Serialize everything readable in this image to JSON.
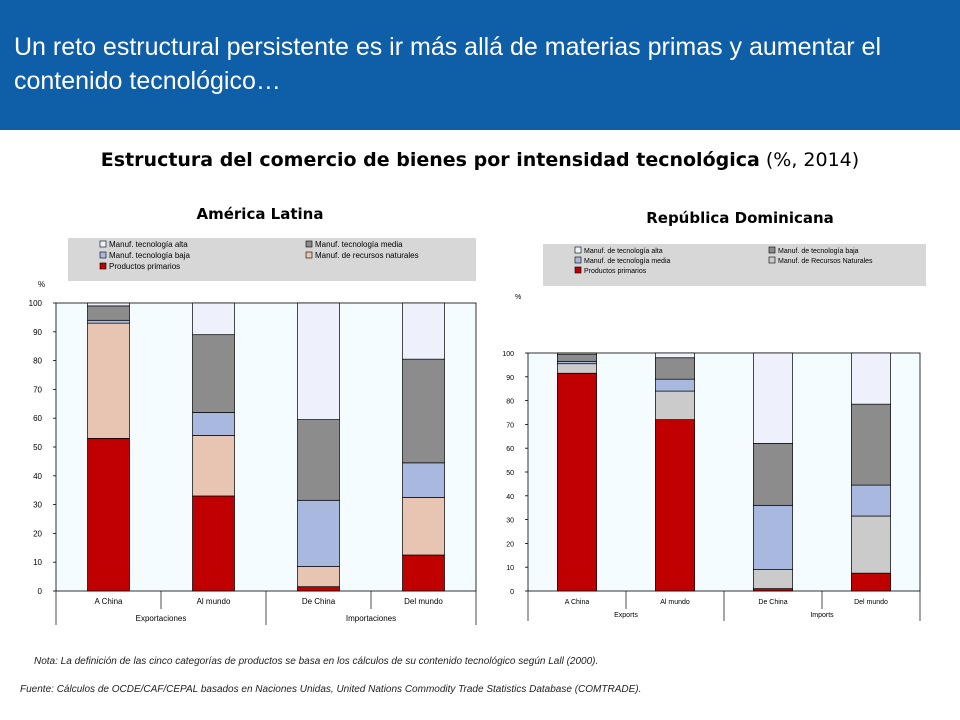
{
  "header": {
    "title": "Un reto estructural persistente es ir más allá de materias primas y aumentar el contenido tecnológico…"
  },
  "main_title": {
    "bold": "Estructura del comercio de bienes por intensidad tecnológica",
    "rest": " (%, 2014)"
  },
  "footnote": "Nota: La definición de las cinco categorías de productos se basa en los cálculos de su contenido tecnológico según Lall (2000).",
  "source": "Fuente: Cálculos de OCDE/CAF/CEPAL basados en Naciones Unidas, United Nations Commodity Trade Statistics Database (COMTRADE).",
  "colors": {
    "banner": "#0f5ea8",
    "primarios": "#c00000",
    "recursos_al": "#e8c5b3",
    "recursos_rd": "#cbcbcb",
    "baja_al": "#a9b8df",
    "media_al": "#8c8c8c",
    "alta": "#eef1fb",
    "plot_bg": "#f4fcff"
  },
  "chart_data": [
    {
      "type": "bar",
      "stacked": true,
      "title": "América Latina",
      "ylabel": "%",
      "ylim": [
        0,
        100
      ],
      "yticks": [
        0,
        10,
        20,
        30,
        40,
        50,
        60,
        70,
        80,
        90,
        100
      ],
      "categories": [
        "A China",
        "Al mundo",
        "De China",
        "Del mundo"
      ],
      "groups": [
        {
          "label": "Exportaciones",
          "categories": [
            "A China",
            "Al mundo"
          ]
        },
        {
          "label": "Importaciones",
          "categories": [
            "De China",
            "Del mundo"
          ]
        }
      ],
      "legend_position": "top",
      "legend_order": [
        "Manuf. tecnología alta",
        "Manuf. tecnología media",
        "Manuf. tecnología baja",
        "Manuf. de recursos naturales",
        "Productos primarios"
      ],
      "series": [
        {
          "name": "Productos primarios",
          "color": "#c00000",
          "values": [
            53,
            33,
            1.5,
            12.5
          ]
        },
        {
          "name": "Manuf. de recursos naturales",
          "color": "#e8c5b3",
          "values": [
            40,
            21,
            7,
            20
          ]
        },
        {
          "name": "Manuf. tecnología baja",
          "color": "#a9b8df",
          "values": [
            1,
            8,
            23,
            12
          ]
        },
        {
          "name": "Manuf. tecnología media",
          "color": "#8c8c8c",
          "values": [
            5,
            27,
            28,
            36
          ]
        },
        {
          "name": "Manuf. tecnología alta",
          "color": "#eef1fb",
          "values": [
            1,
            11,
            40.5,
            19.5
          ]
        }
      ]
    },
    {
      "type": "bar",
      "stacked": true,
      "title": "República Dominicana",
      "ylabel": "%",
      "ylim": [
        0,
        100
      ],
      "yticks": [
        0,
        10,
        20,
        30,
        40,
        50,
        60,
        70,
        80,
        90,
        100
      ],
      "categories": [
        "A China",
        "Al mundo",
        "De China",
        "Del mundo"
      ],
      "groups": [
        {
          "label": "Exports",
          "categories": [
            "A China",
            "Al mundo"
          ]
        },
        {
          "label": "Imports",
          "categories": [
            "De China",
            "Del mundo"
          ]
        }
      ],
      "legend_position": "top",
      "legend_order": [
        "Manuf. de tecnología alta",
        "Manuf. de tecnología baja",
        "Manuf. de tecnología media",
        "Manuf. de Recursos Naturales",
        "Productos primarios"
      ],
      "series": [
        {
          "name": "Productos primarios",
          "color": "#c00000",
          "values": [
            91.5,
            72,
            1,
            7.5
          ]
        },
        {
          "name": "Manuf. de Recursos Naturales",
          "color": "#cbcbcb",
          "values": [
            4,
            12,
            8,
            24
          ]
        },
        {
          "name": "Manuf. de tecnología media",
          "color": "#a9b8df",
          "values": [
            1,
            5,
            27,
            13
          ]
        },
        {
          "name": "Manuf. de tecnología baja",
          "color": "#8c8c8c",
          "values": [
            3,
            9,
            26,
            34
          ]
        },
        {
          "name": "Manuf. de tecnología alta",
          "color": "#eef1fb",
          "values": [
            0.5,
            2,
            38,
            21.5
          ]
        }
      ]
    }
  ]
}
